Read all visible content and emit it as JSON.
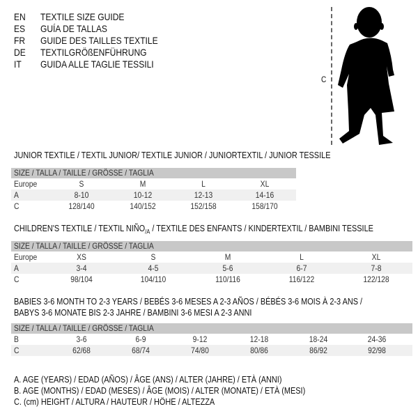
{
  "languages": [
    {
      "code": "EN",
      "title": "TEXTILE SIZE GUIDE"
    },
    {
      "code": "ES",
      "title": "GUÍA DE TALLAS"
    },
    {
      "code": "FR",
      "title": "GUIDE DES TAILLES TEXTILE"
    },
    {
      "code": "DE",
      "title": "TEXTILGRÖßENFÜHRUNG"
    },
    {
      "code": "IT",
      "title": "GUIDA ALLE TAGLIE TESSILI"
    }
  ],
  "figure": {
    "measure_label": "C",
    "icon": "baby-silhouette"
  },
  "junior": {
    "title": "JUNIOR TEXTILE / TEXTIL JUNIOR/ TEXTILE JUNIOR / JUNIORTEXTIL / JUNIOR TESSILE",
    "header": "SIZE / TALLA / TAILLE / GRÖSSE / TAGLIA",
    "rows": [
      {
        "label": "Europe",
        "values": [
          "S",
          "M",
          "L",
          "XL"
        ]
      },
      {
        "label": "A",
        "values": [
          "8-10",
          "10-12",
          "12-13",
          "14-16"
        ]
      },
      {
        "label": "C",
        "values": [
          "128/140",
          "140/152",
          "152/158",
          "158/170"
        ]
      }
    ]
  },
  "children": {
    "title": "CHILDREN'S TEXTILE / TEXTIL NIÑO",
    "title_sub": "/A",
    "title_rest": " / TEXTILE DES ENFANTS / KINDERTEXTIL / BAMBINI TESSILE",
    "header": "SIZE / TALLA / TAILLE / GRÖSSE / TAGLIA",
    "rows": [
      {
        "label": "Europe",
        "values": [
          "XS",
          "S",
          "M",
          "L",
          "XL"
        ]
      },
      {
        "label": "A",
        "values": [
          "3-4",
          "4-5",
          "5-6",
          "6-7",
          "7-8"
        ]
      },
      {
        "label": "C",
        "values": [
          "98/104",
          "104/110",
          "110/116",
          "116/122",
          "122/128"
        ]
      }
    ]
  },
  "babies": {
    "title_line1": "BABIES 3-6 MONTH TO 2-3 YEARS / BEBÉS 3-6 MESES A 2-3 AÑOS / BÉBÉS 3-6 MOIS À 2-3 ANS /",
    "title_line2": "BABYS 3-6 MONATE BIS 2-3 JAHRE / BAMBINI 3-6 MESI A 2-3 ANNI",
    "header": "SIZE / TALLA / TAILLE / GRÖSSE / TAGLIA",
    "rows": [
      {
        "label": "B",
        "values": [
          "3-6",
          "6-9",
          "9-12",
          "12-18",
          "18-24",
          "24-36"
        ]
      },
      {
        "label": "C",
        "values": [
          "62/68",
          "68/74",
          "74/80",
          "80/86",
          "86/92",
          "92/98"
        ]
      }
    ]
  },
  "legend": [
    "A. AGE (YEARS) / EDAD (AÑOS) / ÂGE (ANS) / ALTER (JAHRE) / ETÀ (ANNI)",
    "B. AGE (MONTHS) / EDAD (MESES) / ÂGE (MOIS) / ALTER (MONATE) / ETÀ (MESI)",
    "C. (cm) HEIGHT / ALTURA / HAUTEUR / HÖHE / ALTEZZA"
  ]
}
